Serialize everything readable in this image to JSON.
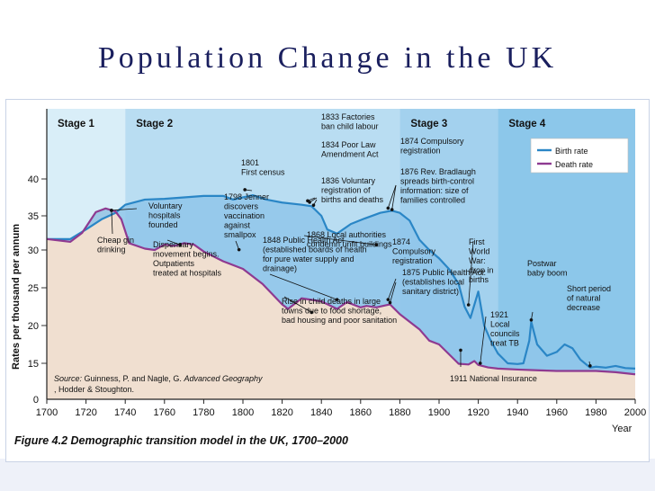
{
  "slide_title": "Population Change in the UK",
  "chart_data": {
    "type": "line",
    "title": "Figure 4.2 Demographic transition model in the UK, 1700–2000",
    "xlabel": "Year",
    "ylabel": "Rates per thousand per annum",
    "xlim": [
      1700,
      2000
    ],
    "ylim": [
      0,
      40
    ],
    "x_ticks": [
      1700,
      1720,
      1740,
      1760,
      1780,
      1800,
      1820,
      1840,
      1860,
      1880,
      1900,
      1920,
      1940,
      1960,
      1980,
      2000
    ],
    "y_ticks": [
      0,
      15,
      20,
      25,
      30,
      35,
      40
    ],
    "stages": [
      {
        "label": "Stage 1",
        "start": 1700,
        "end": 1740
      },
      {
        "label": "Stage 2",
        "start": 1740,
        "end": 1880
      },
      {
        "label": "Stage 3",
        "start": 1880,
        "end": 1930
      },
      {
        "label": "Stage 4",
        "start": 1930,
        "end": 2000
      }
    ],
    "series": [
      {
        "name": "Birth rate",
        "color": "#2a86c6",
        "x": [
          1700,
          1712,
          1720,
          1728,
          1735,
          1740,
          1750,
          1760,
          1770,
          1780,
          1790,
          1795,
          1800,
          1805,
          1812,
          1820,
          1830,
          1835,
          1840,
          1843,
          1848,
          1855,
          1862,
          1870,
          1876,
          1880,
          1885,
          1890,
          1895,
          1900,
          1905,
          1910,
          1913,
          1916,
          1920,
          1923,
          1926,
          1930,
          1935,
          1940,
          1943,
          1946,
          1947,
          1950,
          1955,
          1960,
          1964,
          1968,
          1972,
          1977,
          1980,
          1985,
          1990,
          1995,
          2000
        ],
        "values": [
          31.6,
          31.6,
          33,
          34.5,
          35.4,
          36.5,
          37.2,
          37.3,
          37.5,
          37.7,
          37.7,
          37.2,
          37.5,
          37.8,
          37.2,
          36.8,
          36.5,
          36.3,
          35,
          33,
          32.4,
          33.8,
          34.6,
          35.4,
          35.7,
          35.4,
          34.3,
          31.5,
          30,
          28.9,
          27.5,
          25.5,
          22.5,
          21,
          24.5,
          20,
          18.2,
          16.3,
          15,
          14.7,
          15,
          18,
          20.5,
          17.5,
          16,
          16.5,
          17.5,
          17,
          15.5,
          13.2,
          13.6,
          13.2,
          13.9,
          13,
          12.8
        ]
      },
      {
        "name": "Death rate",
        "color": "#8e3a91",
        "x": [
          1700,
          1712,
          1718,
          1725,
          1730,
          1735,
          1738,
          1742,
          1750,
          1755,
          1760,
          1765,
          1770,
          1775,
          1780,
          1790,
          1800,
          1810,
          1820,
          1823,
          1830,
          1840,
          1848,
          1853,
          1860,
          1863,
          1868,
          1875,
          1880,
          1890,
          1895,
          1900,
          1910,
          1915,
          1918,
          1920,
          1925,
          1930,
          1940,
          1950,
          1960,
          1970,
          1980,
          1990,
          2000
        ],
        "values": [
          31.6,
          31.2,
          32.5,
          35.5,
          36,
          35.6,
          34.5,
          31,
          30.2,
          30,
          30.8,
          30.6,
          31,
          30.8,
          29.8,
          28.5,
          27.5,
          25.5,
          22.8,
          22.2,
          23.6,
          23.2,
          22.2,
          23.1,
          22.4,
          22.6,
          22.4,
          22.8,
          21.5,
          19.5,
          18,
          17.5,
          14.8,
          14.5,
          15.3,
          14.3,
          13.3,
          12.8,
          12.4,
          12.1,
          11.8,
          11.8,
          11.8,
          11.3,
          10.4
        ]
      }
    ],
    "annotations": [
      {
        "year": 1801,
        "value": 38.3,
        "text": "1801\nFirst census"
      },
      {
        "year": 1833,
        "value": 36.8,
        "text": "1833 Factories\nban child labour"
      },
      {
        "year": 1834,
        "value": 36.6,
        "text": "1834 Poor Law\nAmendment Act"
      },
      {
        "year": 1836,
        "value": 36.2,
        "text": "1836 Voluntary\nregistration of\nbirths and deaths"
      },
      {
        "year": 1874,
        "value": 35.8,
        "text": "1874 Compulsory\nregistration"
      },
      {
        "year": 1876,
        "value": 35.6,
        "text": "1876 Rev. Bradlaugh\nspreads birth-control\ninformation: size of\nfamilies controlled"
      },
      {
        "year": 1733,
        "value": 35.5,
        "text": "Voluntary\nhospitals\nfounded"
      },
      {
        "year": 1798,
        "value": 29.8,
        "text": "1798 Jenner\ndiscovers\nvaccination\nagainst\nsmallpox"
      },
      {
        "year": 1733,
        "value": 35.5,
        "text": "Cheap gin\ndrinking"
      },
      {
        "year": 1768,
        "value": 30.5,
        "text": "Dispensary\nmovement begins.\nOutpatients\ntreated at hospitals"
      },
      {
        "year": 1848,
        "value": 23.2,
        "text": "1848 Public Health Act\n(established boards of health\nfor pure water supply and\ndrainage)"
      },
      {
        "year": 1868,
        "value": 30.5,
        "text": "1868 Local authorities\ncondemn unfit buildings"
      },
      {
        "year": 1874,
        "value": 23.2,
        "text": "1874\nCompulsory\nregistration"
      },
      {
        "year": 1875,
        "value": 22.8,
        "text": "1875 Public Health Act:\n(establishes local\nsanitary district)"
      },
      {
        "year": 1835,
        "value": 21.5,
        "text": "Rise in child deaths in large\ntowns due to food shortage,\nbad housing and poor sanitation"
      },
      {
        "year": 1911,
        "value": 16.5,
        "text": "1911 National Insurance"
      },
      {
        "year": 1921,
        "value": 14.3,
        "text": "1921\nLocal\ncouncils\ntreat TB"
      },
      {
        "year": 1915,
        "value": 22.5,
        "text": "First\nWorld\nWar:\ndrop in\nbirths"
      },
      {
        "year": 1947,
        "value": 20.5,
        "text": "Postwar\nbaby boom"
      },
      {
        "year": 1977,
        "value": 13.2,
        "text": "Short period\nof natural\ndecrease"
      }
    ],
    "source_prefix": "Source:",
    "source_main": " Guinness, P. and Nagle, G. ",
    "source_book": "Advanced Geography",
    "source_suffix": ", Hodder & Stoughton."
  }
}
